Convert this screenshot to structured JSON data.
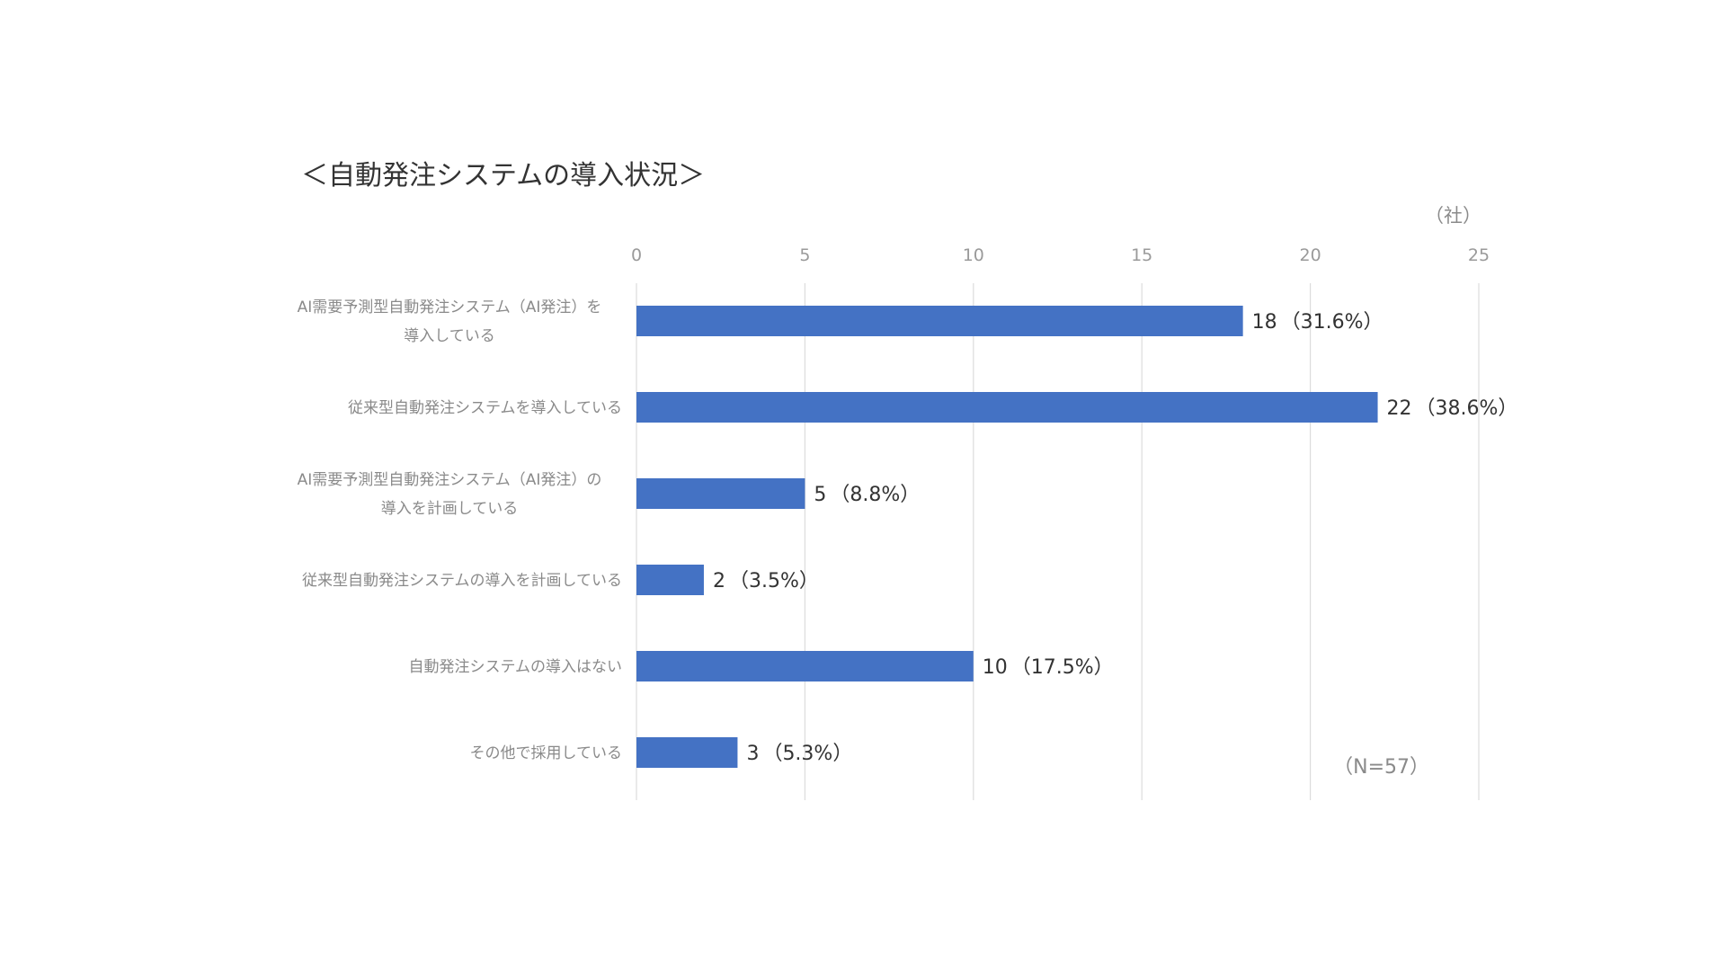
{
  "chart_data": {
    "type": "bar",
    "orientation": "horizontal",
    "title": "＜自動発注システムの導入状況＞",
    "unit_label": "（社）",
    "note": "（N=57）",
    "xlim": [
      0,
      25
    ],
    "x_ticks": [
      0,
      5,
      10,
      15,
      20,
      25
    ],
    "x_axis_position": "top",
    "grid": true,
    "legend": "none",
    "bar_color": "#4472C4",
    "categories": [
      [
        "AI需要予測型自動発注システム（AI発注）を",
        "導入している"
      ],
      [
        "従来型自動発注システムを導入している"
      ],
      [
        "AI需要予測型自動発注システム（AI発注）の",
        "導入を計画している"
      ],
      [
        "従来型自動発注システムの導入を計画している"
      ],
      [
        "自動発注システムの導入はない"
      ],
      [
        "その他で採用している"
      ]
    ],
    "values": [
      18,
      22,
      5,
      2,
      10,
      3
    ],
    "percentages": [
      "（31.6%）",
      "（38.6%）",
      "（8.8%）",
      "（3.5%）",
      "（17.5%）",
      "（5.3%）"
    ]
  }
}
